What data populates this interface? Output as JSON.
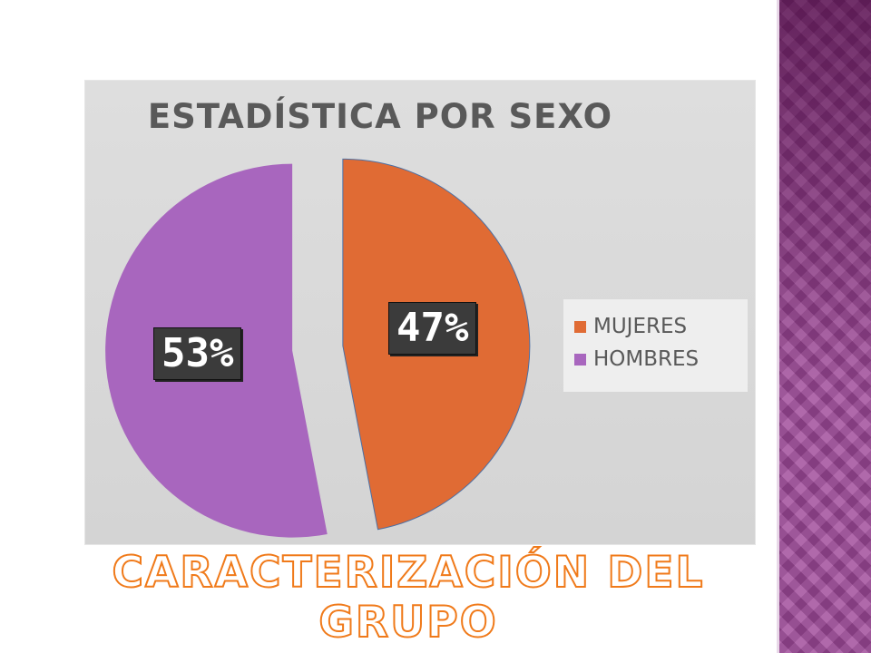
{
  "slide": {
    "title": "CARACTERIZACIÓN DEL GRUPO",
    "accent_color": "#a04a9a",
    "title_outline_color": "#f07a1a"
  },
  "chart_data": {
    "type": "pie",
    "title": "ESTADÍSTICA POR SEXO",
    "categories": [
      "MUJERES",
      "HOMBRES"
    ],
    "values": [
      47,
      53
    ],
    "data_labels": [
      "47%",
      "53%"
    ],
    "colors": [
      "#e06b34",
      "#a866be"
    ],
    "exploded": true,
    "legend_position": "right"
  }
}
